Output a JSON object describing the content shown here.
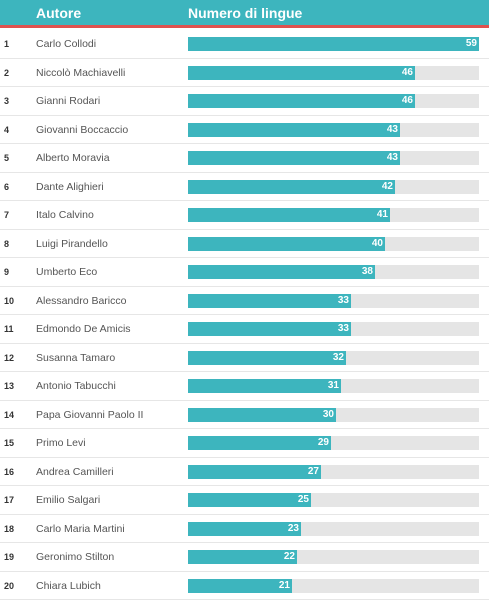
{
  "colors": {
    "accent": "#3db5be",
    "header_rule": "#e0524f",
    "track": "#e5e5e5"
  },
  "chart_data": {
    "type": "bar",
    "orientation": "horizontal",
    "columns": [
      "Autore",
      "Numero di lingue"
    ],
    "xlim": [
      0,
      59
    ],
    "rows": [
      {
        "rank": "1",
        "name": "Carlo Collodi",
        "value": 59
      },
      {
        "rank": "2",
        "name": "Niccolò Machiavelli",
        "value": 46
      },
      {
        "rank": "3",
        "name": "Gianni Rodari",
        "value": 46
      },
      {
        "rank": "4",
        "name": "Giovanni Boccaccio",
        "value": 43
      },
      {
        "rank": "5",
        "name": "Alberto Moravia",
        "value": 43
      },
      {
        "rank": "6",
        "name": "Dante Alighieri",
        "value": 42
      },
      {
        "rank": "7",
        "name": "Italo Calvino",
        "value": 41
      },
      {
        "rank": "8",
        "name": "Luigi Pirandello",
        "value": 40
      },
      {
        "rank": "9",
        "name": "Umberto Eco",
        "value": 38
      },
      {
        "rank": "10",
        "name": "Alessandro Baricco",
        "value": 33
      },
      {
        "rank": "11",
        "name": "Edmondo De Amicis",
        "value": 33
      },
      {
        "rank": "12",
        "name": "Susanna Tamaro",
        "value": 32
      },
      {
        "rank": "13",
        "name": "Antonio Tabucchi",
        "value": 31
      },
      {
        "rank": "14",
        "name": "Papa Giovanni Paolo II",
        "value": 30
      },
      {
        "rank": "15",
        "name": "Primo Levi",
        "value": 29
      },
      {
        "rank": "16",
        "name": "Andrea Camilleri",
        "value": 27
      },
      {
        "rank": "17",
        "name": "Emilio Salgari",
        "value": 25
      },
      {
        "rank": "18",
        "name": "Carlo Maria Martini",
        "value": 23
      },
      {
        "rank": "19",
        "name": "Geronimo Stilton",
        "value": 22
      },
      {
        "rank": "20",
        "name": "Chiara Lubich",
        "value": 21
      }
    ]
  }
}
